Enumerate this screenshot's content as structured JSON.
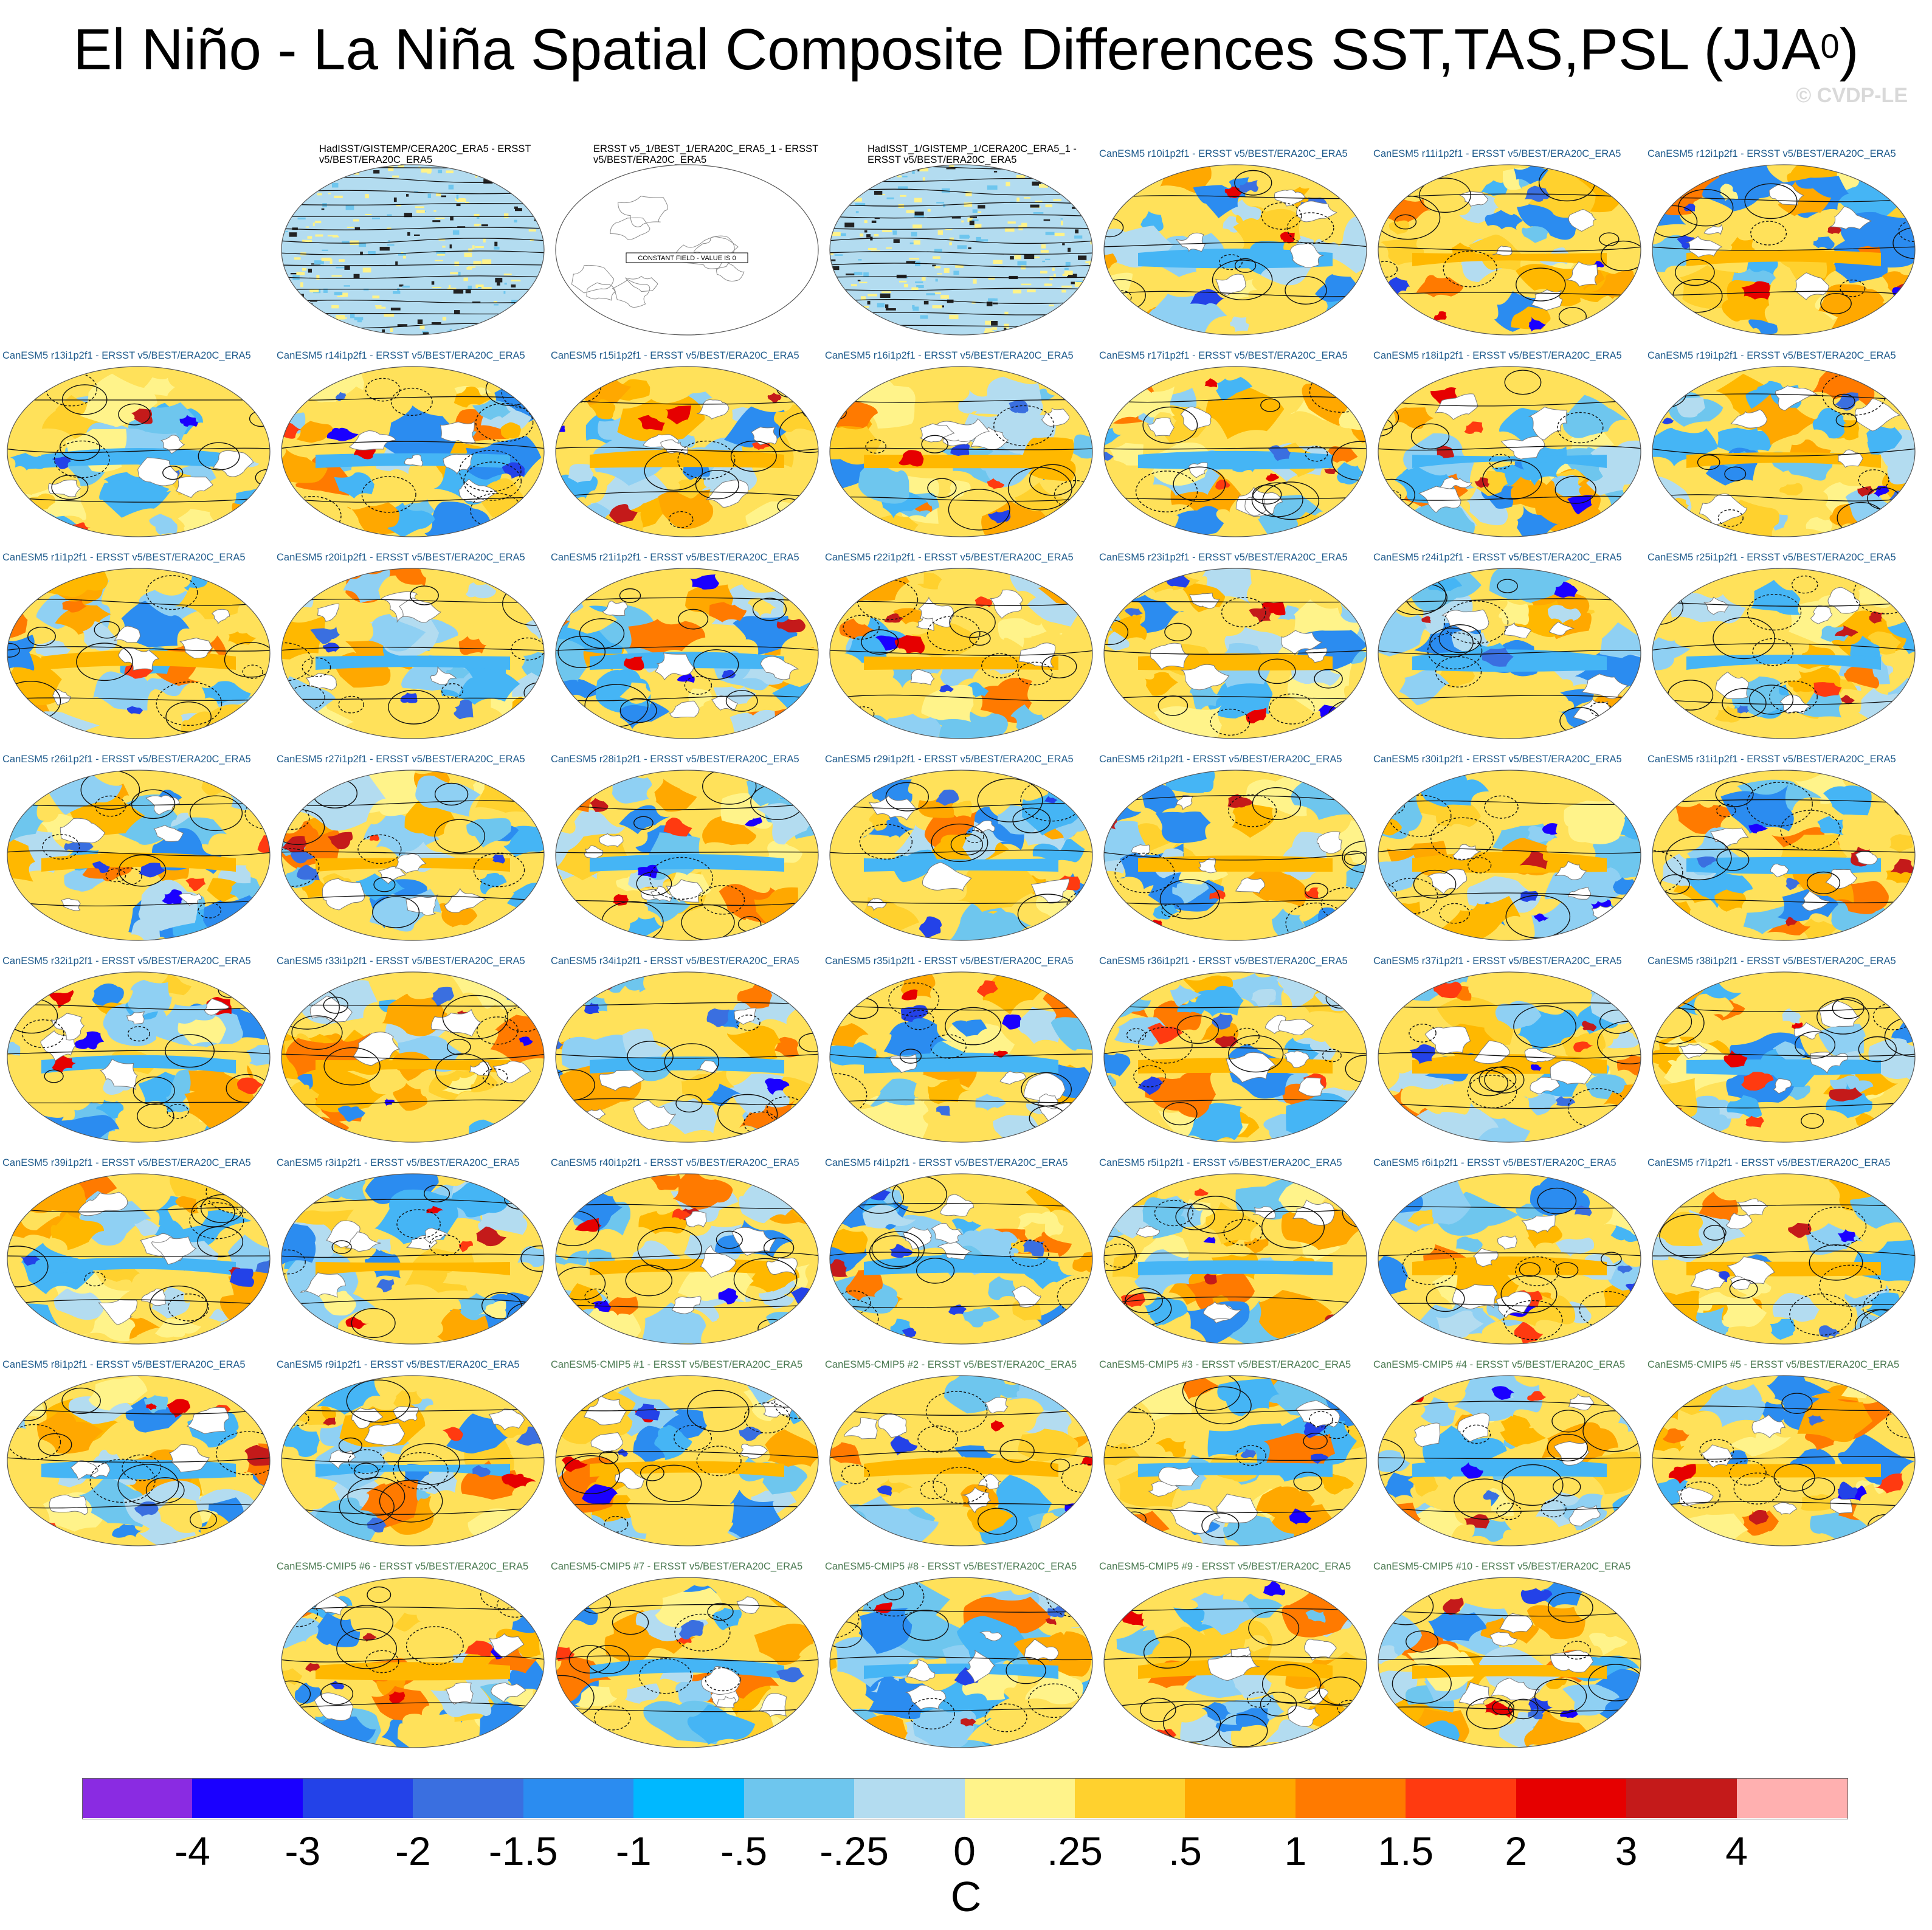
{
  "title": "El Niño - La Niña Spatial Composite Differences SST,TAS,PSL (JJA",
  "title_superscript": "0",
  "title_close": ")",
  "copyright": "© CVDP-LE",
  "constant_field_label": "CONSTANT FIELD - VALUE IS 0",
  "panels": [
    {
      "label": "HadISST/GISTEMP/CERA20C_ERA5 - ERSST v5/BEST/ERA20C_ERA5",
      "kind": "obs",
      "style": "noise"
    },
    {
      "label": "ERSST v5_1/BEST_1/ERA20C_ERA5_1 - ERSST v5/BEST/ERA20C_ERA5",
      "kind": "obs",
      "style": "constant"
    },
    {
      "label": "HadISST_1/GISTEMP_1/CERA20C_ERA5_1 - ERSST v5/BEST/ERA20C_ERA5",
      "kind": "obs",
      "style": "noise"
    },
    {
      "label": "CanESM5 r10i1p2f1 - ERSST v5/BEST/ERA20C_ERA5",
      "kind": "le",
      "style": "field"
    },
    {
      "label": "CanESM5 r11i1p2f1 - ERSST v5/BEST/ERA20C_ERA5",
      "kind": "le",
      "style": "field"
    },
    {
      "label": "CanESM5 r12i1p2f1 - ERSST v5/BEST/ERA20C_ERA5",
      "kind": "le",
      "style": "field"
    },
    {
      "label": "CanESM5 r13i1p2f1 - ERSST v5/BEST/ERA20C_ERA5",
      "kind": "le",
      "style": "field"
    },
    {
      "label": "CanESM5 r14i1p2f1 - ERSST v5/BEST/ERA20C_ERA5",
      "kind": "le",
      "style": "field"
    },
    {
      "label": "CanESM5 r15i1p2f1 - ERSST v5/BEST/ERA20C_ERA5",
      "kind": "le",
      "style": "field"
    },
    {
      "label": "CanESM5 r16i1p2f1 - ERSST v5/BEST/ERA20C_ERA5",
      "kind": "le",
      "style": "field"
    },
    {
      "label": "CanESM5 r17i1p2f1 - ERSST v5/BEST/ERA20C_ERA5",
      "kind": "le",
      "style": "field"
    },
    {
      "label": "CanESM5 r18i1p2f1 - ERSST v5/BEST/ERA20C_ERA5",
      "kind": "le",
      "style": "field"
    },
    {
      "label": "CanESM5 r19i1p2f1 - ERSST v5/BEST/ERA20C_ERA5",
      "kind": "le",
      "style": "field"
    },
    {
      "label": "CanESM5 r1i1p2f1 - ERSST v5/BEST/ERA20C_ERA5",
      "kind": "le",
      "style": "field"
    },
    {
      "label": "CanESM5 r20i1p2f1 - ERSST v5/BEST/ERA20C_ERA5",
      "kind": "le",
      "style": "field"
    },
    {
      "label": "CanESM5 r21i1p2f1 - ERSST v5/BEST/ERA20C_ERA5",
      "kind": "le",
      "style": "field"
    },
    {
      "label": "CanESM5 r22i1p2f1 - ERSST v5/BEST/ERA20C_ERA5",
      "kind": "le",
      "style": "field"
    },
    {
      "label": "CanESM5 r23i1p2f1 - ERSST v5/BEST/ERA20C_ERA5",
      "kind": "le",
      "style": "field"
    },
    {
      "label": "CanESM5 r24i1p2f1 - ERSST v5/BEST/ERA20C_ERA5",
      "kind": "le",
      "style": "field"
    },
    {
      "label": "CanESM5 r25i1p2f1 - ERSST v5/BEST/ERA20C_ERA5",
      "kind": "le",
      "style": "field"
    },
    {
      "label": "CanESM5 r26i1p2f1 - ERSST v5/BEST/ERA20C_ERA5",
      "kind": "le",
      "style": "field"
    },
    {
      "label": "CanESM5 r27i1p2f1 - ERSST v5/BEST/ERA20C_ERA5",
      "kind": "le",
      "style": "field"
    },
    {
      "label": "CanESM5 r28i1p2f1 - ERSST v5/BEST/ERA20C_ERA5",
      "kind": "le",
      "style": "field"
    },
    {
      "label": "CanESM5 r29i1p2f1 - ERSST v5/BEST/ERA20C_ERA5",
      "kind": "le",
      "style": "field"
    },
    {
      "label": "CanESM5 r2i1p2f1 - ERSST v5/BEST/ERA20C_ERA5",
      "kind": "le",
      "style": "field"
    },
    {
      "label": "CanESM5 r30i1p2f1 - ERSST v5/BEST/ERA20C_ERA5",
      "kind": "le",
      "style": "field"
    },
    {
      "label": "CanESM5 r31i1p2f1 - ERSST v5/BEST/ERA20C_ERA5",
      "kind": "le",
      "style": "field"
    },
    {
      "label": "CanESM5 r32i1p2f1 - ERSST v5/BEST/ERA20C_ERA5",
      "kind": "le",
      "style": "field"
    },
    {
      "label": "CanESM5 r33i1p2f1 - ERSST v5/BEST/ERA20C_ERA5",
      "kind": "le",
      "style": "field"
    },
    {
      "label": "CanESM5 r34i1p2f1 - ERSST v5/BEST/ERA20C_ERA5",
      "kind": "le",
      "style": "field"
    },
    {
      "label": "CanESM5 r35i1p2f1 - ERSST v5/BEST/ERA20C_ERA5",
      "kind": "le",
      "style": "field"
    },
    {
      "label": "CanESM5 r36i1p2f1 - ERSST v5/BEST/ERA20C_ERA5",
      "kind": "le",
      "style": "field"
    },
    {
      "label": "CanESM5 r37i1p2f1 - ERSST v5/BEST/ERA20C_ERA5",
      "kind": "le",
      "style": "field"
    },
    {
      "label": "CanESM5 r38i1p2f1 - ERSST v5/BEST/ERA20C_ERA5",
      "kind": "le",
      "style": "field"
    },
    {
      "label": "CanESM5 r39i1p2f1 - ERSST v5/BEST/ERA20C_ERA5",
      "kind": "le",
      "style": "field"
    },
    {
      "label": "CanESM5 r3i1p2f1 - ERSST v5/BEST/ERA20C_ERA5",
      "kind": "le",
      "style": "field"
    },
    {
      "label": "CanESM5 r40i1p2f1 - ERSST v5/BEST/ERA20C_ERA5",
      "kind": "le",
      "style": "field"
    },
    {
      "label": "CanESM5 r4i1p2f1 - ERSST v5/BEST/ERA20C_ERA5",
      "kind": "le",
      "style": "field"
    },
    {
      "label": "CanESM5 r5i1p2f1 - ERSST v5/BEST/ERA20C_ERA5",
      "kind": "le",
      "style": "field"
    },
    {
      "label": "CanESM5 r6i1p2f1 - ERSST v5/BEST/ERA20C_ERA5",
      "kind": "le",
      "style": "field"
    },
    {
      "label": "CanESM5 r7i1p2f1 - ERSST v5/BEST/ERA20C_ERA5",
      "kind": "le",
      "style": "field"
    },
    {
      "label": "CanESM5 r8i1p2f1 - ERSST v5/BEST/ERA20C_ERA5",
      "kind": "le",
      "style": "field"
    },
    {
      "label": "CanESM5 r9i1p2f1 - ERSST v5/BEST/ERA20C_ERA5",
      "kind": "le",
      "style": "field"
    },
    {
      "label": "CanESM5-CMIP5 #1 - ERSST v5/BEST/ERA20C_ERA5",
      "kind": "cmip",
      "style": "field"
    },
    {
      "label": "CanESM5-CMIP5 #2 - ERSST v5/BEST/ERA20C_ERA5",
      "kind": "cmip",
      "style": "field"
    },
    {
      "label": "CanESM5-CMIP5 #3 - ERSST v5/BEST/ERA20C_ERA5",
      "kind": "cmip",
      "style": "field"
    },
    {
      "label": "CanESM5-CMIP5 #4 - ERSST v5/BEST/ERA20C_ERA5",
      "kind": "cmip",
      "style": "field"
    },
    {
      "label": "CanESM5-CMIP5 #5 - ERSST v5/BEST/ERA20C_ERA5",
      "kind": "cmip",
      "style": "field"
    },
    {
      "label": "CanESM5-CMIP5 #6 - ERSST v5/BEST/ERA20C_ERA5",
      "kind": "cmip",
      "style": "field"
    },
    {
      "label": "CanESM5-CMIP5 #7 - ERSST v5/BEST/ERA20C_ERA5",
      "kind": "cmip",
      "style": "field"
    },
    {
      "label": "CanESM5-CMIP5 #8 - ERSST v5/BEST/ERA20C_ERA5",
      "kind": "cmip",
      "style": "field"
    },
    {
      "label": "CanESM5-CMIP5 #9 - ERSST v5/BEST/ERA20C_ERA5",
      "kind": "cmip",
      "style": "field"
    },
    {
      "label": "CanESM5-CMIP5 #10 - ERSST v5/BEST/ERA20C_ERA5",
      "kind": "cmip",
      "style": "field"
    }
  ],
  "chart_data": {
    "type": "heatmap",
    "title": "El Niño - La Niña Spatial Composite Differences SST,TAS,PSL (JJA0)",
    "variables": [
      "SST",
      "TAS",
      "PSL"
    ],
    "season": "JJA0",
    "projection": "global map",
    "panel_count": 53,
    "colorbar": {
      "units": "C",
      "tick_labels": [
        "-4",
        "-3",
        "-2",
        "-1.5",
        "-1",
        "-.5",
        "-.25",
        "0",
        ".25",
        ".5",
        "1",
        "1.5",
        "2",
        "3",
        "4"
      ],
      "levels": [
        -4,
        -3,
        -2,
        -1.5,
        -1,
        -0.5,
        -0.25,
        0,
        0.25,
        0.5,
        1,
        1.5,
        2,
        3,
        4
      ],
      "colors": [
        "#8a2be2",
        "#1a00ff",
        "#2342e8",
        "#3a6fe0",
        "#2b8cf0",
        "#00b8ff",
        "#6ec6ee",
        "#b3dcf0",
        "#fff38a",
        "#ffd12e",
        "#ffa800",
        "#ff7a00",
        "#ff3a10",
        "#e60000",
        "#c41a1a",
        "#ffb0b0"
      ]
    }
  }
}
